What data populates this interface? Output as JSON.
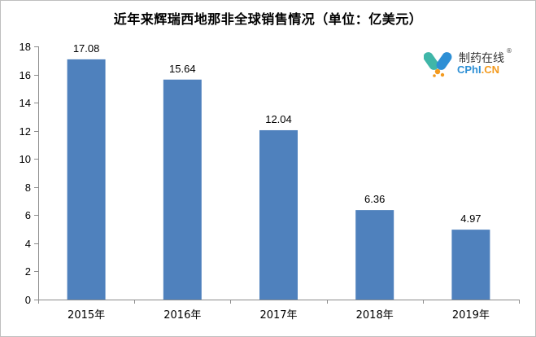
{
  "chart_data": {
    "type": "bar",
    "title": "近年来辉瑞西地那非全球销售情况（单位：亿美元）",
    "categories": [
      "2015年",
      "2016年",
      "2017年",
      "2018年",
      "2019年"
    ],
    "values": [
      17.08,
      15.64,
      12.04,
      6.36,
      4.97
    ],
    "value_labels": [
      "17.08",
      "15.64",
      "12.04",
      "6.36",
      "4.97"
    ],
    "ylim": [
      0,
      18
    ],
    "yticks": [
      0,
      2,
      4,
      6,
      8,
      10,
      12,
      14,
      16,
      18
    ],
    "ytick_labels": [
      "0",
      "2",
      "4",
      "6",
      "8",
      "10",
      "12",
      "14",
      "16",
      "18"
    ],
    "xlabel": "",
    "ylabel": "",
    "grid": false,
    "bar_color": "#4f81bd"
  },
  "watermark": {
    "name_cn": "制药在线",
    "registered": "®",
    "name_en_prefix": "CPhI",
    "name_en_suffix": ".CN",
    "colors": {
      "teal": "#3fb6a8",
      "blue": "#2d8fd5",
      "orange": "#f39a1e"
    }
  }
}
